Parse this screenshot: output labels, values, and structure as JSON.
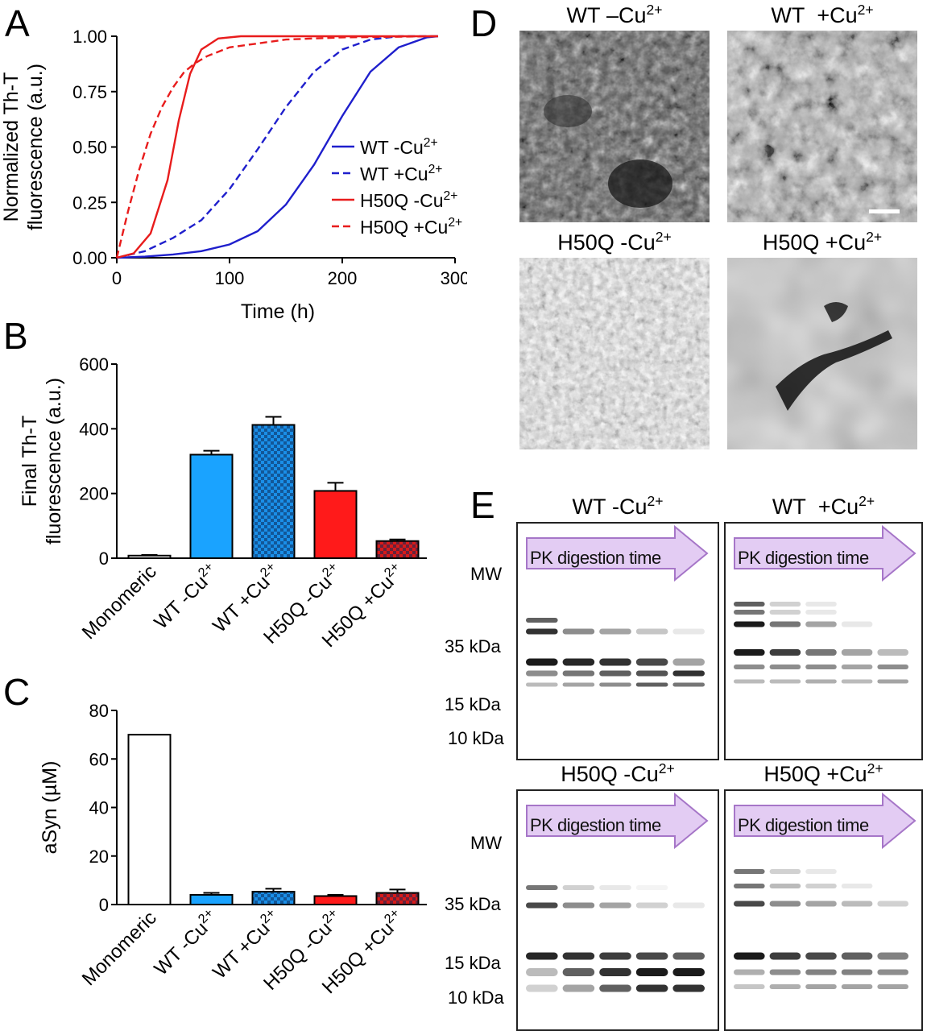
{
  "panels": {
    "a": "A",
    "b": "B",
    "c": "C",
    "d": "D",
    "e": "E"
  },
  "chart_data": [
    {
      "panel": "A",
      "type": "line",
      "xlabel": "Time (h)",
      "ylabel_lines": [
        "Normalized Th-T",
        "fluorescence (a.u.)"
      ],
      "xlim": [
        0,
        300
      ],
      "ylim": [
        0,
        1
      ],
      "xticks": [
        "0",
        "100",
        "200",
        "300"
      ],
      "yticks": [
        "0.00",
        "0.25",
        "0.50",
        "0.75",
        "1.00"
      ],
      "legend_position": "right",
      "series": [
        {
          "name": "WT -Cu2+",
          "color": "#1f1fcc",
          "dash": false,
          "x": [
            0,
            25,
            50,
            75,
            100,
            125,
            150,
            175,
            200,
            225,
            250,
            275,
            285
          ],
          "y": [
            0.0,
            0.005,
            0.015,
            0.03,
            0.06,
            0.12,
            0.24,
            0.42,
            0.64,
            0.84,
            0.95,
            0.995,
            1.0
          ]
        },
        {
          "name": "WT +Cu2+",
          "color": "#1f1fcc",
          "dash": true,
          "x": [
            0,
            25,
            50,
            75,
            100,
            125,
            150,
            175,
            200,
            225,
            250,
            275,
            285
          ],
          "y": [
            0.0,
            0.03,
            0.09,
            0.17,
            0.31,
            0.49,
            0.68,
            0.84,
            0.94,
            0.985,
            1.0,
            1.0,
            1.0
          ]
        },
        {
          "name": "H50Q -Cu2+",
          "color": "#e81c1c",
          "dash": false,
          "x": [
            0,
            15,
            30,
            45,
            55,
            65,
            75,
            90,
            110,
            150,
            200,
            285
          ],
          "y": [
            0.0,
            0.02,
            0.11,
            0.35,
            0.62,
            0.83,
            0.94,
            0.99,
            1.0,
            1.0,
            1.0,
            1.0
          ]
        },
        {
          "name": "H50Q +Cu2+",
          "color": "#e81c1c",
          "dash": true,
          "x": [
            0,
            10,
            20,
            30,
            40,
            50,
            60,
            70,
            80,
            100,
            150,
            200,
            285
          ],
          "y": [
            0.0,
            0.21,
            0.4,
            0.56,
            0.68,
            0.77,
            0.84,
            0.88,
            0.91,
            0.95,
            0.985,
            0.995,
            1.0
          ]
        }
      ]
    },
    {
      "panel": "B",
      "type": "bar",
      "ylabel_lines": [
        "Final Th-T",
        "fluorescence (a.u.)"
      ],
      "ylim": [
        0,
        600
      ],
      "yticks": [
        "0",
        "200",
        "400",
        "600"
      ],
      "categories": [
        "Monomeric",
        "WT -Cu2+",
        "WT +Cu2+",
        "H50Q -Cu2+",
        "H50Q +Cu2+"
      ],
      "values": [
        8,
        320,
        412,
        208,
        53
      ],
      "errors": [
        2,
        12,
        25,
        25,
        5
      ],
      "colors": [
        "#ffffff",
        "#1aa3ff",
        "#1a8fe8",
        "#ff1a1a",
        "#d81a1a"
      ],
      "patterns": [
        false,
        false,
        true,
        false,
        true
      ]
    },
    {
      "panel": "C",
      "type": "bar",
      "ylabel": "aSyn (µM)",
      "ylim": [
        0,
        80
      ],
      "yticks": [
        "0",
        "20",
        "40",
        "60",
        "80"
      ],
      "categories": [
        "Monomeric",
        "WT -Cu2+",
        "WT +Cu2+",
        "H50Q -Cu2+",
        "H50Q +Cu2+"
      ],
      "values": [
        70,
        4,
        5.3,
        3.5,
        4.8
      ],
      "errors": [
        0,
        0.8,
        1.2,
        0.5,
        1.4
      ],
      "colors": [
        "#ffffff",
        "#1aa3ff",
        "#1a8fe8",
        "#ff1a1a",
        "#d81a1a"
      ],
      "patterns": [
        false,
        false,
        true,
        false,
        true
      ]
    }
  ],
  "em": {
    "titles": [
      "WT –Cu2+",
      "WT  +Cu2+",
      "H50Q -Cu2+",
      "H50Q +Cu2+"
    ]
  },
  "gels": {
    "titles": [
      "WT -Cu2+",
      "WT  +Cu2+",
      "H50Q -Cu2+",
      "H50Q +Cu2+"
    ],
    "arrow_text": "PK digestion time",
    "mw_label": "MW",
    "markers": [
      "35 kDa",
      "15 kDa",
      "10 kDa"
    ]
  }
}
